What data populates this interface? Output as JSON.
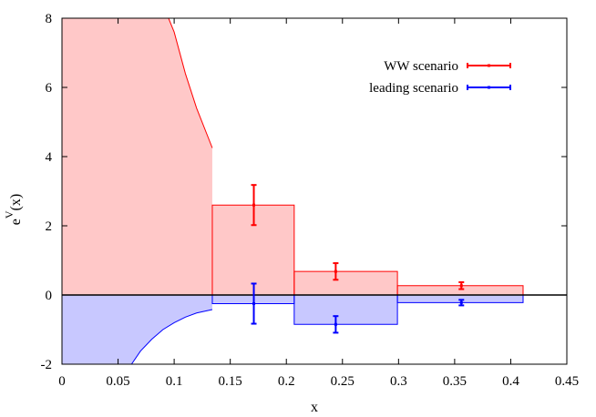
{
  "chart_data": {
    "type": "area",
    "xlabel": "x",
    "ylabel_base": "e",
    "ylabel_sup": "V",
    "ylabel_tail": "(x)",
    "xlim": [
      0,
      0.45
    ],
    "ylim": [
      -2,
      8
    ],
    "xticks": [
      0,
      0.05,
      0.1,
      0.15,
      0.2,
      0.25,
      0.3,
      0.35,
      0.4,
      0.45
    ],
    "xtick_labels": [
      "0",
      "0.05",
      "0.1",
      "0.15",
      "0.2",
      "0.25",
      "0.3",
      "0.35",
      "0.4",
      "0.45"
    ],
    "yticks": [
      -2,
      0,
      2,
      4,
      6,
      8
    ],
    "ytick_labels": [
      "-2",
      "0",
      "2",
      "4",
      "6",
      "8"
    ],
    "legend_position": "top-right",
    "series": [
      {
        "name": "WW scenario",
        "color": "#ff0000",
        "fill": "#ffc8c8",
        "curve": [
          [
            0,
            8
          ],
          [
            0.095,
            8
          ],
          [
            0.1,
            7.6
          ],
          [
            0.11,
            6.4
          ],
          [
            0.12,
            5.4
          ],
          [
            0.134,
            4.25
          ]
        ],
        "bins": [
          {
            "x0": 0.134,
            "x1": 0.207,
            "value": 2.6
          },
          {
            "x0": 0.207,
            "x1": 0.299,
            "value": 0.68
          },
          {
            "x0": 0.299,
            "x1": 0.411,
            "value": 0.27
          }
        ],
        "points": [
          {
            "x": 0.171,
            "y": 2.6,
            "err": 0.58
          },
          {
            "x": 0.244,
            "y": 0.68,
            "err": 0.24
          },
          {
            "x": 0.356,
            "y": 0.27,
            "err": 0.1
          }
        ]
      },
      {
        "name": "leading scenario",
        "color": "#0000ff",
        "fill": "#c8c8ff",
        "curve": [
          [
            0,
            -2
          ],
          [
            0.062,
            -2
          ],
          [
            0.07,
            -1.62
          ],
          [
            0.08,
            -1.28
          ],
          [
            0.09,
            -1.0
          ],
          [
            0.1,
            -0.8
          ],
          [
            0.11,
            -0.64
          ],
          [
            0.12,
            -0.52
          ],
          [
            0.134,
            -0.42
          ]
        ],
        "bins": [
          {
            "x0": 0.134,
            "x1": 0.207,
            "value": -0.25
          },
          {
            "x0": 0.207,
            "x1": 0.299,
            "value": -0.85
          },
          {
            "x0": 0.299,
            "x1": 0.411,
            "value": -0.22
          }
        ],
        "points": [
          {
            "x": 0.171,
            "y": -0.25,
            "err": 0.58
          },
          {
            "x": 0.244,
            "y": -0.85,
            "err": 0.24
          },
          {
            "x": 0.356,
            "y": -0.22,
            "err": 0.08
          }
        ]
      }
    ]
  }
}
